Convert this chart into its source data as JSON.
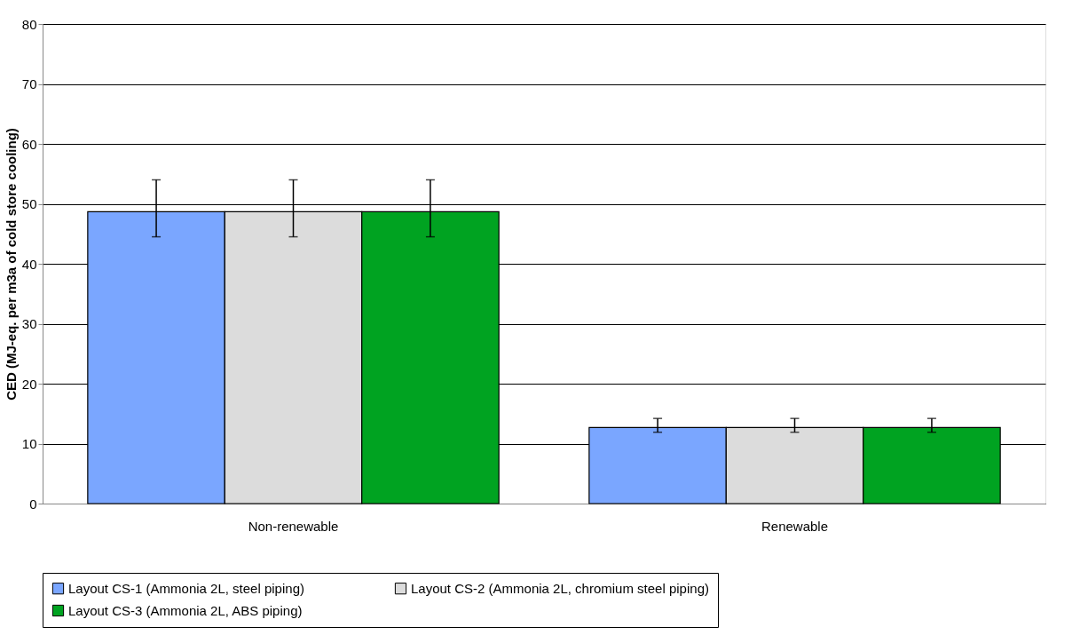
{
  "chart_data": {
    "type": "bar",
    "ylabel": "CED (MJ-eq. per m3a of cold store cooling)",
    "categories": [
      "Non-renewable",
      "Renewable"
    ],
    "series": [
      {
        "name": "Layout CS-1 (Ammonia 2L, steel piping)",
        "color": "#7aa6ff",
        "values": [
          48.7,
          12.7
        ],
        "errors": [
          [
            44.5,
            54.0
          ],
          [
            11.9,
            14.2
          ]
        ]
      },
      {
        "name": "Layout CS-2 (Ammonia 2L, chromium steel piping)",
        "color": "#dcdcdc",
        "values": [
          48.7,
          12.7
        ],
        "errors": [
          [
            44.5,
            54.0
          ],
          [
            11.9,
            14.2
          ]
        ]
      },
      {
        "name": "Layout CS-3 (Ammonia 2L, ABS piping)",
        "color": "#00a321",
        "values": [
          48.7,
          12.7
        ],
        "errors": [
          [
            44.5,
            54.0
          ],
          [
            11.9,
            14.2
          ]
        ]
      }
    ],
    "ylim": [
      0,
      80
    ],
    "yticks": [
      0,
      10,
      20,
      30,
      40,
      50,
      60,
      70,
      80
    ],
    "grid": "y",
    "legend": "bottom"
  }
}
